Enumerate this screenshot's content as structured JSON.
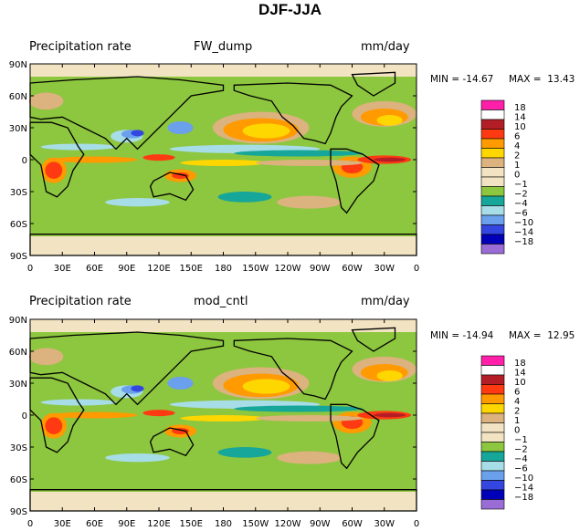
{
  "figure_title": "DJF-JJA",
  "chart_data": [
    {
      "type": "heatmap",
      "left_label": "Precipitation rate",
      "title": "FW_dump",
      "units": "mm/day",
      "min_label": "MIN = -14.67",
      "max_label": "MAX =  13.43",
      "min": -14.67,
      "max": 13.43,
      "xticks": [
        "0",
        "30E",
        "60E",
        "90E",
        "120E",
        "150E",
        "180",
        "150W",
        "120W",
        "90W",
        "60W",
        "30W",
        "0"
      ],
      "yticks": [
        "90N",
        "60N",
        "30N",
        "0",
        "30S",
        "60S",
        "90S"
      ],
      "xlim": [
        0,
        360
      ],
      "ylim": [
        -90,
        90
      ]
    },
    {
      "type": "heatmap",
      "left_label": "Precipitation rate",
      "title": "mod_cntl",
      "units": "mm/day",
      "min_label": "MIN = -14.94",
      "max_label": "MAX =  12.95",
      "min": -14.94,
      "max": 12.95,
      "xticks": [
        "0",
        "30E",
        "60E",
        "90E",
        "120E",
        "150E",
        "180",
        "150W",
        "120W",
        "90W",
        "60W",
        "30W",
        "0"
      ],
      "yticks": [
        "90N",
        "60N",
        "30N",
        "0",
        "30S",
        "60S",
        "90S"
      ],
      "xlim": [
        0,
        360
      ],
      "ylim": [
        -90,
        90
      ]
    }
  ],
  "colorbar": {
    "levels": [
      {
        "label": "18",
        "color": "#ff1fa8"
      },
      {
        "label": "14",
        "color": "#ffffff"
      },
      {
        "label": "10",
        "color": "#b31e26"
      },
      {
        "label": "6",
        "color": "#ff3a12"
      },
      {
        "label": "4",
        "color": "#ff9a00"
      },
      {
        "label": "2",
        "color": "#ffd700"
      },
      {
        "label": "1",
        "color": "#dcb27e"
      },
      {
        "label": "0",
        "color": "#f2e4c2"
      },
      {
        "label": "−1",
        "color": "#f2e4c2"
      },
      {
        "label": "−2",
        "color": "#8dc63f"
      },
      {
        "label": "−4",
        "color": "#16a69a"
      },
      {
        "label": "−6",
        "color": "#a7dde6"
      },
      {
        "label": "−10",
        "color": "#6aa0ec"
      },
      {
        "label": "−14",
        "color": "#3346e0"
      },
      {
        "label": "−18",
        "color": "#0000b8"
      },
      {
        "label": "",
        "color": "#9a6cd6"
      }
    ]
  }
}
